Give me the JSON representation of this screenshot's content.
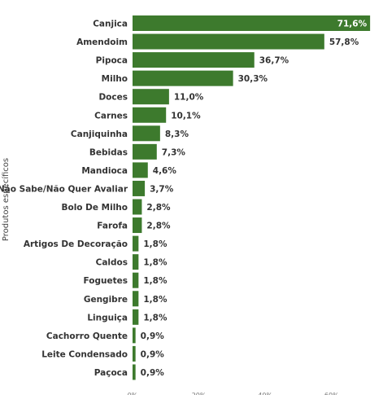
{
  "chart_data": {
    "type": "bar",
    "orientation": "horizontal",
    "title": "",
    "ylabel": "Produtos específicos",
    "xlabel": "",
    "xlim": [
      0,
      75
    ],
    "x_ticks": [
      "0%",
      "20%",
      "40%",
      "60%"
    ],
    "grid": false,
    "legend": "none",
    "bar_color": "#3d7a2d",
    "categories": [
      "Canjica",
      "Amendoim",
      "Pipoca",
      "Milho",
      "Doces",
      "Carnes",
      "Canjiquinha",
      "Bebidas",
      "Mandioca",
      "Não Sabe/Não Quer Avaliar",
      "Bolo De Milho",
      "Farofa",
      "Artigos De Decoração",
      "Caldos",
      "Foguetes",
      "Gengibre",
      "Linguiça",
      "Cachorro Quente",
      "Leite Condensado",
      "Paçoca"
    ],
    "values": [
      71.6,
      57.8,
      36.7,
      30.3,
      11.0,
      10.1,
      8.3,
      7.3,
      4.6,
      3.7,
      2.8,
      2.8,
      1.8,
      1.8,
      1.8,
      1.8,
      1.8,
      0.9,
      0.9,
      0.9
    ],
    "labels": [
      "71,6%",
      "57,8%",
      "36,7%",
      "30,3%",
      "11,0%",
      "10,1%",
      "8,3%",
      "7,3%",
      "4,6%",
      "3,7%",
      "2,8%",
      "2,8%",
      "1,8%",
      "1,8%",
      "1,8%",
      "1,8%",
      "1,8%",
      "0,9%",
      "0,9%",
      "0,9%"
    ]
  }
}
